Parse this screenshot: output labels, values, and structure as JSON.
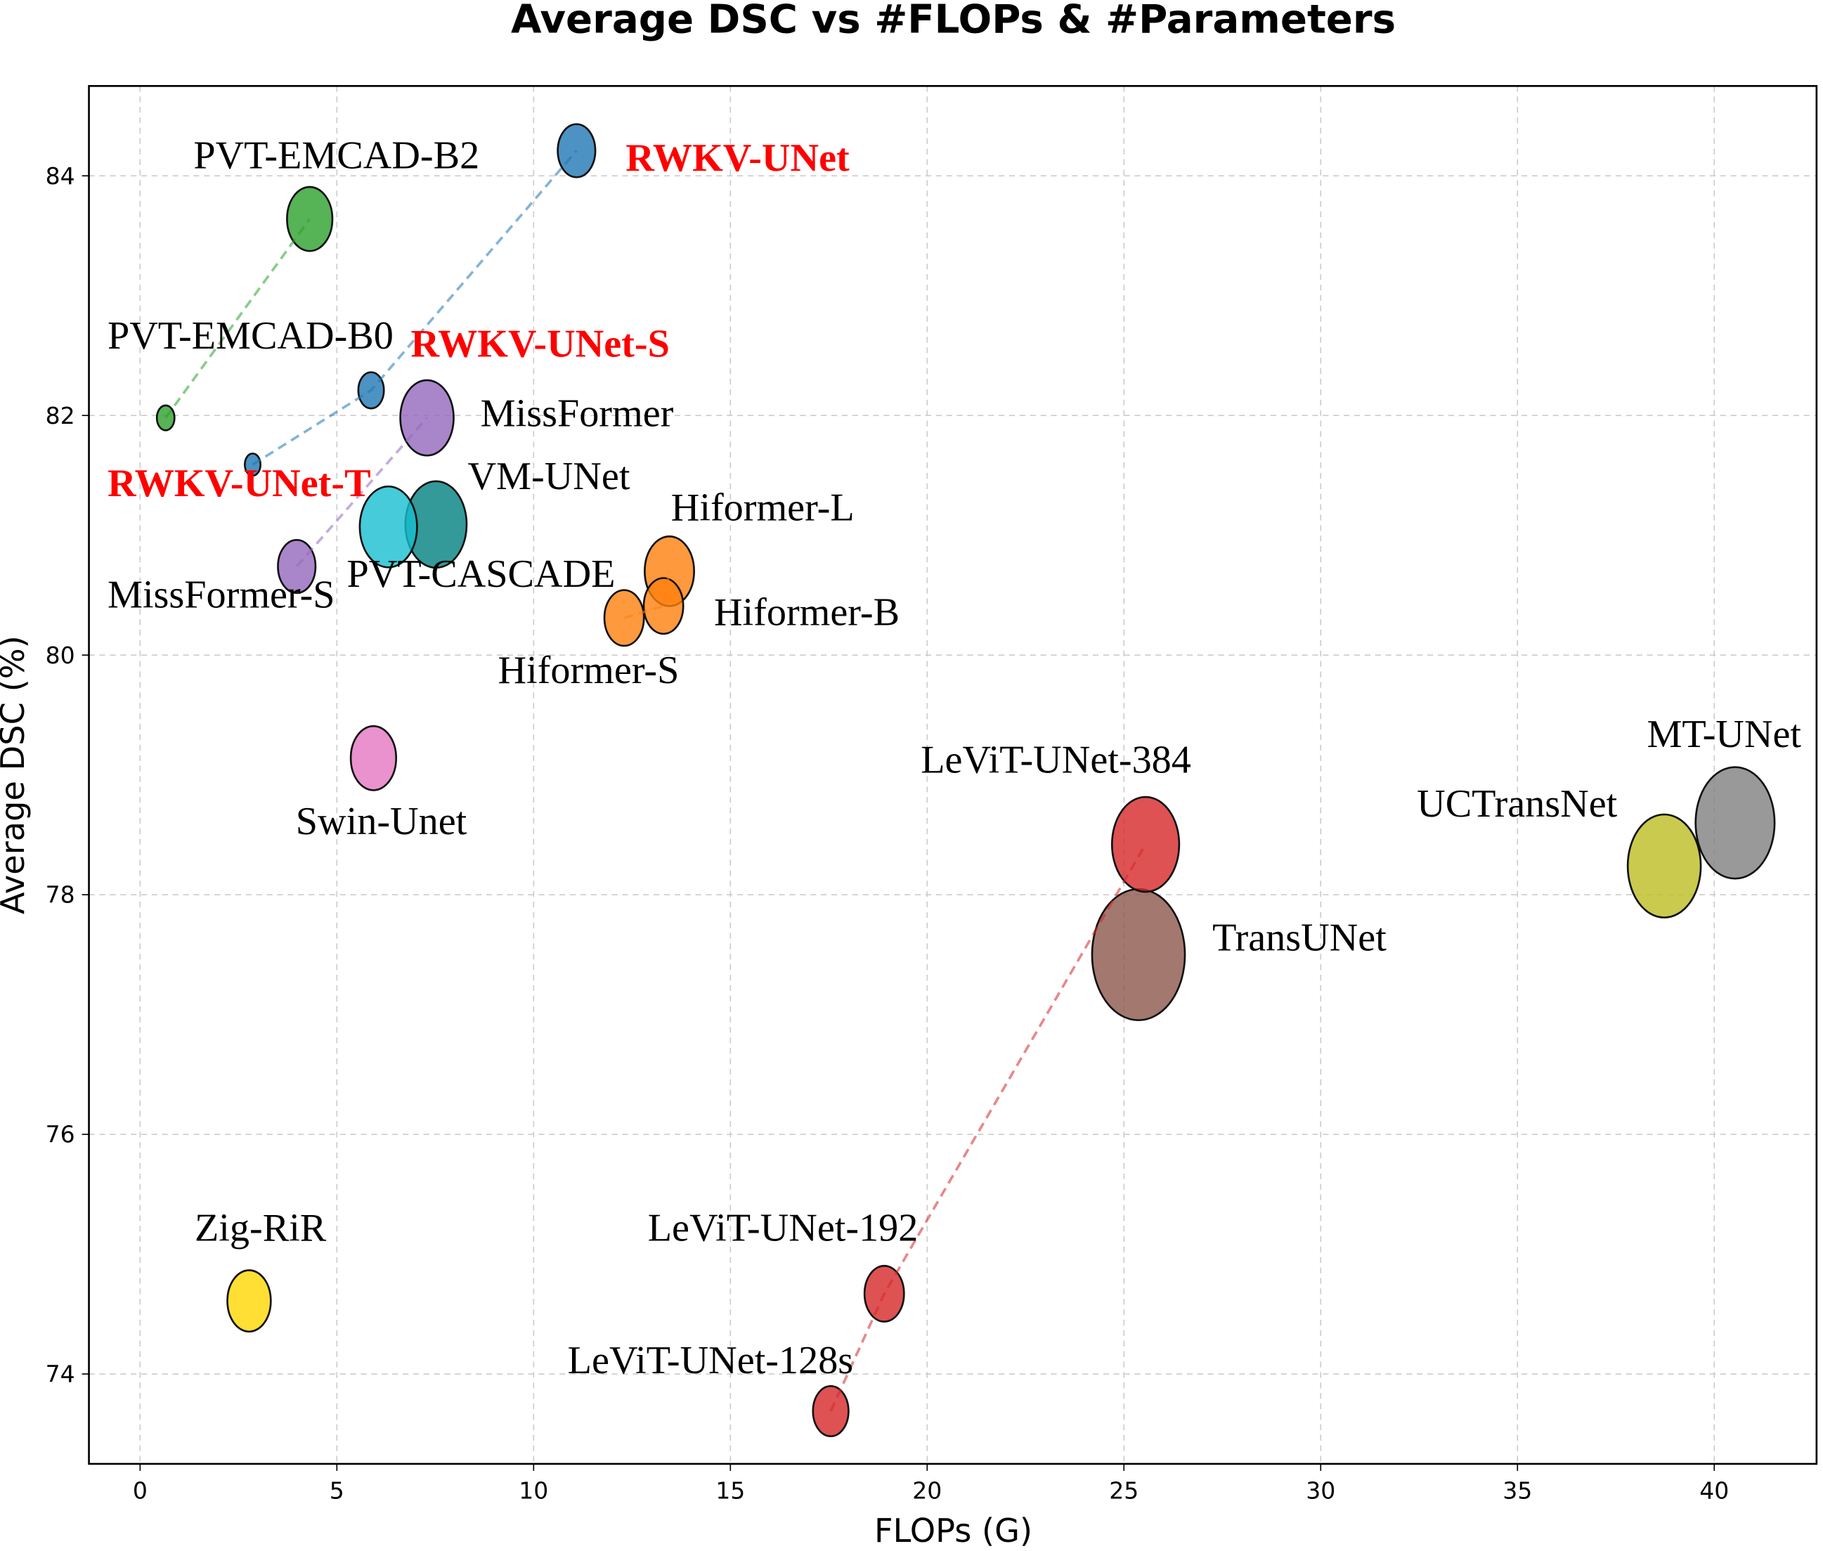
{
  "chart_data": {
    "type": "scatter",
    "title": "Average DSC vs #FLOPs & #Parameters",
    "xlabel": "FLOPs (G)",
    "ylabel": "Average DSC (%)",
    "xlim": [
      -1.3,
      42.6
    ],
    "ylim": [
      73.25,
      84.75
    ],
    "xticks": [
      "0",
      "5",
      "10",
      "15",
      "20",
      "25",
      "30",
      "35",
      "40"
    ],
    "yticks": [
      "74",
      "76",
      "78",
      "80",
      "82",
      "84"
    ],
    "grid": true,
    "bubble_size_encodes": "#Parameters",
    "points": [
      {
        "label": "RWKV-UNet",
        "x": 11.09,
        "y": 84.21,
        "params_rel": 17.2,
        "color": "#1f77b4",
        "highlight": true
      },
      {
        "label": "RWKV-UNet-S",
        "x": 5.87,
        "y": 82.21,
        "params_rel": 8.0,
        "color": "#1f77b4",
        "highlight": true
      },
      {
        "label": "RWKV-UNet-T",
        "x": 2.86,
        "y": 81.59,
        "params_rel": 3.0,
        "color": "#1f77b4",
        "highlight": true
      },
      {
        "label": "PVT-EMCAD-B2",
        "x": 4.31,
        "y": 83.64,
        "params_rel": 25.1,
        "color": "#2ca02c"
      },
      {
        "label": "PVT-EMCAD-B0",
        "x": 0.65,
        "y": 81.98,
        "params_rel": 3.8,
        "color": "#2ca02c"
      },
      {
        "label": "MissFormer",
        "x": 7.29,
        "y": 81.98,
        "params_rel": 34.7,
        "color": "#9467bd"
      },
      {
        "label": "MissFormer-S",
        "x": 3.98,
        "y": 80.74,
        "params_rel": 17.2,
        "color": "#9467bd"
      },
      {
        "label": "PVT-CASCADE",
        "x": 6.31,
        "y": 81.07,
        "params_rel": 40.0,
        "color": "#17becf"
      },
      {
        "label": "VM-UNet",
        "x": 7.52,
        "y": 81.09,
        "params_rel": 45.7,
        "color": "#008080"
      },
      {
        "label": "Hiformer-L",
        "x": 13.45,
        "y": 80.7,
        "params_rel": 29.7,
        "color": "#ff7f0e"
      },
      {
        "label": "Hiformer-B",
        "x": 13.3,
        "y": 80.41,
        "params_rel": 19.0,
        "color": "#ff7f0e"
      },
      {
        "label": "Hiformer-S",
        "x": 12.3,
        "y": 80.31,
        "params_rel": 19.0,
        "color": "#ff7f0e"
      },
      {
        "label": "Swin-Unet",
        "x": 5.93,
        "y": 79.14,
        "params_rel": 25.1,
        "color": "#e377c2"
      },
      {
        "label": "LeViT-UNet-384",
        "x": 25.55,
        "y": 78.42,
        "params_rel": 55.0,
        "color": "#d62728"
      },
      {
        "label": "TransUNet",
        "x": 25.37,
        "y": 77.5,
        "params_rel": 105.0,
        "color": "#8c564b"
      },
      {
        "label": "MT-UNet",
        "x": 40.53,
        "y": 78.6,
        "params_rel": 76.0,
        "color": "#7f7f7f"
      },
      {
        "label": "UCTransNet",
        "x": 38.73,
        "y": 78.24,
        "params_rel": 65.0,
        "color": "#bcbd22"
      },
      {
        "label": "Zig-RiR",
        "x": 2.77,
        "y": 74.61,
        "params_rel": 23.0,
        "color": "#ffd700"
      },
      {
        "label": "LeViT-UNet-192",
        "x": 18.91,
        "y": 74.67,
        "params_rel": 19.0,
        "color": "#d62728"
      },
      {
        "label": "LeViT-UNet-128s",
        "x": 17.55,
        "y": 73.69,
        "params_rel": 15.4,
        "color": "#d62728"
      }
    ],
    "connections": [
      {
        "members": [
          "RWKV-UNet-T",
          "RWKV-UNet-S",
          "RWKV-UNet"
        ],
        "color": "#1f77b4",
        "style": "dashed"
      },
      {
        "members": [
          "PVT-EMCAD-B0",
          "PVT-EMCAD-B2"
        ],
        "color": "#2ca02c",
        "style": "dashed"
      },
      {
        "members": [
          "MissFormer-S",
          "MissFormer"
        ],
        "color": "#9467bd",
        "style": "dashed"
      },
      {
        "members": [
          "Hiformer-S",
          "Hiformer-B",
          "Hiformer-L"
        ],
        "color": "#ff7f0e",
        "style": "dashed"
      },
      {
        "members": [
          "LeViT-UNet-128s",
          "LeViT-UNet-192",
          "LeViT-UNet-384"
        ],
        "color": "#d62728",
        "style": "dashed"
      }
    ]
  }
}
